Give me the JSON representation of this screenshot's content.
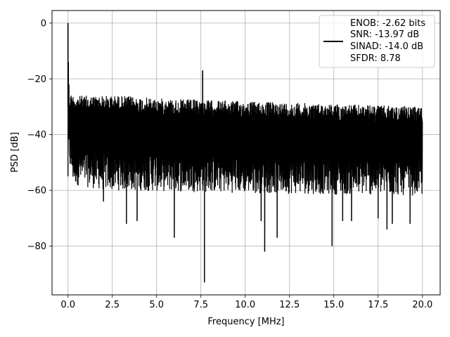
{
  "chart_data": {
    "type": "line",
    "title": "",
    "xlabel": "Frequency [MHz]",
    "ylabel": "PSD [dB]",
    "xlim": [
      -0.9,
      21.0
    ],
    "ylim": [
      -97.5,
      4.5
    ],
    "xticks": [
      0.0,
      2.5,
      5.0,
      7.5,
      10.0,
      12.5,
      15.0,
      17.5,
      20.0
    ],
    "xtick_labels": [
      "0.0",
      "2.5",
      "5.0",
      "7.5",
      "10.0",
      "12.5",
      "15.0",
      "17.5",
      "20.0"
    ],
    "yticks": [
      0,
      -20,
      -40,
      -60,
      -80
    ],
    "ytick_labels": [
      "0",
      "−20",
      "−40",
      "−60",
      "−80"
    ],
    "grid": true,
    "legend_position": "top-right",
    "legend_lines": [
      "ENOB: -2.62 bits",
      "SNR: -13.97 dB",
      "SINAD: -14.0 dB",
      "SFDR: 8.78"
    ],
    "series": [
      {
        "color": "#000000",
        "x_range": [
          0.0,
          20.0
        ],
        "noise_floor_top_db": [
          [
            0.0,
            -25
          ],
          [
            0.5,
            -26
          ],
          [
            3.0,
            -26
          ],
          [
            5.0,
            -27
          ],
          [
            10.0,
            -28
          ],
          [
            15.0,
            -29
          ],
          [
            20.0,
            -30
          ]
        ],
        "noise_floor_bottom_db": [
          [
            0.0,
            -50
          ],
          [
            0.3,
            -58
          ],
          [
            2.0,
            -60
          ],
          [
            10.0,
            -61
          ],
          [
            20.0,
            -62
          ]
        ],
        "peaks": [
          {
            "x": 0.0,
            "y": 0.0
          },
          {
            "x": 0.02,
            "y": -14.0
          },
          {
            "x": 0.05,
            "y": -22.0
          },
          {
            "x": 7.6,
            "y": -17.0
          }
        ],
        "dips": [
          {
            "x": 0.0,
            "y": -48.0
          },
          {
            "x": 2.0,
            "y": -64.0
          },
          {
            "x": 3.3,
            "y": -72.0
          },
          {
            "x": 3.9,
            "y": -71.0
          },
          {
            "x": 6.0,
            "y": -77.0
          },
          {
            "x": 7.7,
            "y": -93.0
          },
          {
            "x": 10.9,
            "y": -71.0
          },
          {
            "x": 11.1,
            "y": -82.0
          },
          {
            "x": 11.8,
            "y": -77.0
          },
          {
            "x": 14.9,
            "y": -80.0
          },
          {
            "x": 15.5,
            "y": -71.0
          },
          {
            "x": 16.0,
            "y": -71.0
          },
          {
            "x": 17.5,
            "y": -70.0
          },
          {
            "x": 18.0,
            "y": -74.0
          },
          {
            "x": 18.3,
            "y": -72.0
          },
          {
            "x": 19.3,
            "y": -72.0
          }
        ]
      }
    ]
  }
}
